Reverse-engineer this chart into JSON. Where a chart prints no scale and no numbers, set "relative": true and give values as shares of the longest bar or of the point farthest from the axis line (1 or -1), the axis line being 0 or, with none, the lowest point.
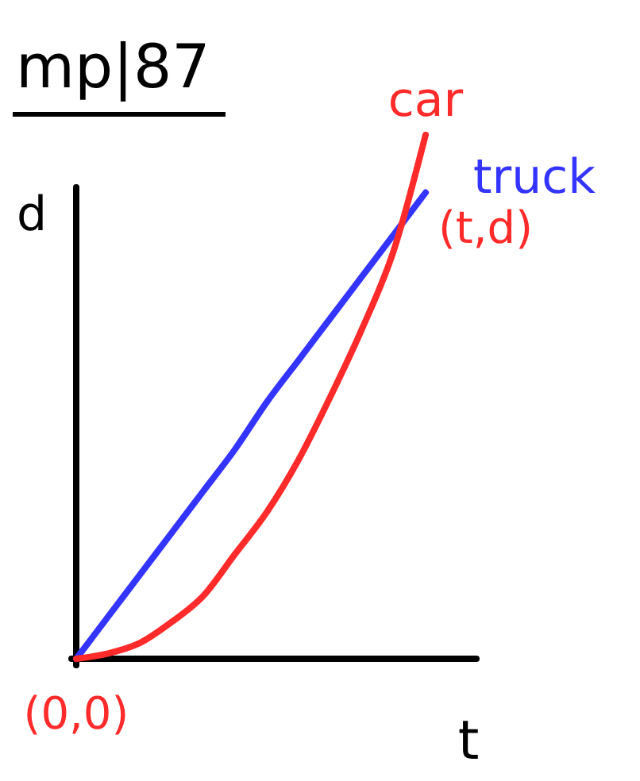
{
  "chart_data": {
    "type": "line",
    "title": "mp|87",
    "xlabel": "t",
    "ylabel": "d",
    "relative": true,
    "categories": [
      null,
      null,
      null,
      null,
      null,
      null,
      null,
      null,
      null,
      null,
      null,
      null
    ],
    "series": [
      {
        "name": "truck",
        "color": "#3434ff",
        "values": [
          0,
          0.08,
          0.16,
          0.24,
          0.32,
          0.4,
          0.49,
          0.57,
          0.65,
          0.73,
          0.81,
          0.89
        ]
      },
      {
        "name": "car",
        "color": "#ff2a2a",
        "values": [
          0,
          0.01,
          0.03,
          0.07,
          0.12,
          0.2,
          0.28,
          0.38,
          0.5,
          0.63,
          0.78,
          1
        ]
      }
    ],
    "annotations": [
      "(0,0)",
      "(t,d)"
    ]
  }
}
